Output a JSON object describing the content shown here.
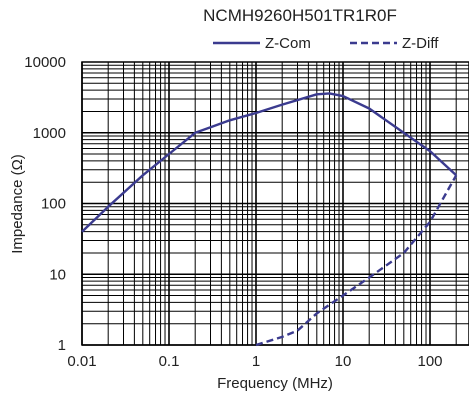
{
  "chart_data": {
    "type": "line",
    "title": "NCMH9260H501TR1R0F",
    "xlabel": "Frequency (MHz)",
    "ylabel": "Impedance (Ω)",
    "x_scale": "log",
    "y_scale": "log",
    "xlim": [
      0.01,
      200
    ],
    "ylim": [
      1,
      10000
    ],
    "x_ticks": [
      "0.01",
      "0.1",
      "1",
      "10",
      "100"
    ],
    "y_ticks": [
      "1",
      "10",
      "100",
      "1000",
      "10000"
    ],
    "grid": true,
    "legend_position": "top",
    "series": [
      {
        "name": "Z-Com",
        "style": "solid",
        "color": "#3b3b8f",
        "x": [
          0.01,
          0.02,
          0.05,
          0.1,
          0.2,
          0.5,
          1,
          2,
          5,
          7,
          10,
          20,
          50,
          100,
          200
        ],
        "y": [
          40,
          90,
          250,
          500,
          1000,
          1500,
          1900,
          2500,
          3500,
          3600,
          3300,
          2200,
          1000,
          550,
          250
        ]
      },
      {
        "name": "Z-Diff",
        "style": "dashed",
        "color": "#3b3b8f",
        "x": [
          1,
          2,
          3,
          5,
          10,
          20,
          50,
          100,
          200
        ],
        "y": [
          1,
          1.3,
          1.6,
          2.8,
          5,
          9,
          20,
          55,
          250
        ]
      }
    ]
  }
}
